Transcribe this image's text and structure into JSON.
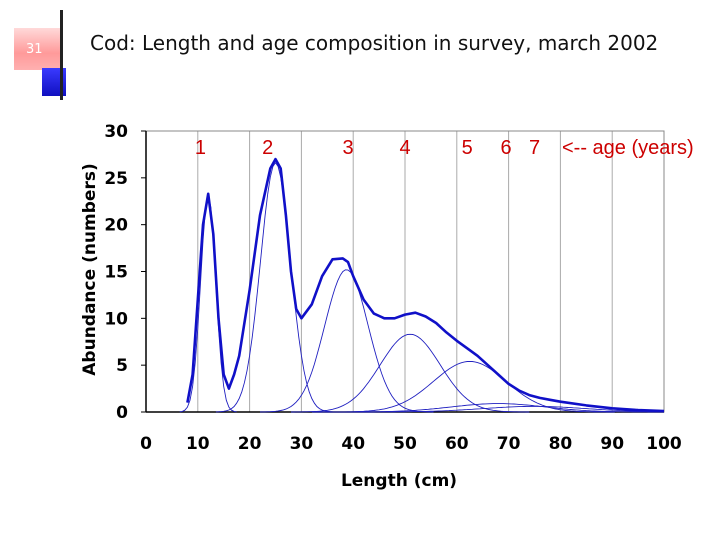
{
  "slide": {
    "number": "31"
  },
  "title": "Cod: Length and age composition in survey, march 2002",
  "chart_data": {
    "type": "line",
    "xlabel": "Length (cm)",
    "ylabel": "Abundance (numbers)",
    "xlim": [
      0,
      100
    ],
    "ylim": [
      0,
      30
    ],
    "x_ticks": [
      "0",
      "10",
      "20",
      "30",
      "40",
      "50",
      "60",
      "70",
      "80",
      "90",
      "100"
    ],
    "y_ticks": [
      "0",
      "5",
      "10",
      "15",
      "20",
      "25",
      "30"
    ],
    "grid": "vertical",
    "age_labels": [
      {
        "text": "1",
        "x": 10.5
      },
      {
        "text": "2",
        "x": 23.5
      },
      {
        "text": "3",
        "x": 39
      },
      {
        "text": "4",
        "x": 50
      },
      {
        "text": "5",
        "x": 62
      },
      {
        "text": "6",
        "x": 69.5
      },
      {
        "text": "7",
        "x": 75
      }
    ],
    "age_annotation": "<-- age (years)",
    "components": [
      {
        "mean": 12,
        "sd": 1.45,
        "amp": 23.2
      },
      {
        "mean": 25,
        "sd": 2.9,
        "amp": 26.6
      },
      {
        "mean": 38.7,
        "sd": 4.2,
        "amp": 15.2
      },
      {
        "mean": 51,
        "sd": 5.8,
        "amp": 8.3
      },
      {
        "mean": 62.5,
        "sd": 7,
        "amp": 5.4
      },
      {
        "mean": 68,
        "sd": 9,
        "amp": 0.9
      },
      {
        "mean": 75,
        "sd": 10,
        "amp": 0.6
      }
    ],
    "total": {
      "x": [
        8,
        9,
        10,
        11,
        12,
        13,
        14,
        15,
        16,
        17,
        18,
        20,
        22,
        24,
        25,
        26,
        27,
        28,
        29,
        30,
        32,
        34,
        36,
        38,
        39,
        40,
        42,
        44,
        46,
        48,
        50,
        52,
        54,
        56,
        58,
        60,
        62,
        64,
        66,
        68,
        70,
        72,
        74,
        76,
        78,
        80,
        85,
        90,
        95,
        100
      ],
      "y": [
        1,
        4,
        12,
        20,
        23.3,
        19,
        10,
        4,
        2.5,
        4,
        6,
        13,
        21,
        26,
        27,
        26,
        21,
        15,
        11,
        10,
        11.5,
        14.5,
        16.3,
        16.4,
        16,
        14.5,
        12,
        10.5,
        10,
        10,
        10.4,
        10.6,
        10.2,
        9.5,
        8.5,
        7.6,
        6.8,
        6,
        5,
        4,
        3,
        2.3,
        1.8,
        1.5,
        1.3,
        1.1,
        0.7,
        0.4,
        0.2,
        0.1
      ]
    },
    "colors": {
      "total": "#1010c8",
      "component": "#2020c0",
      "grid": "#aaaaaa",
      "age_label": "#cc0000"
    }
  }
}
